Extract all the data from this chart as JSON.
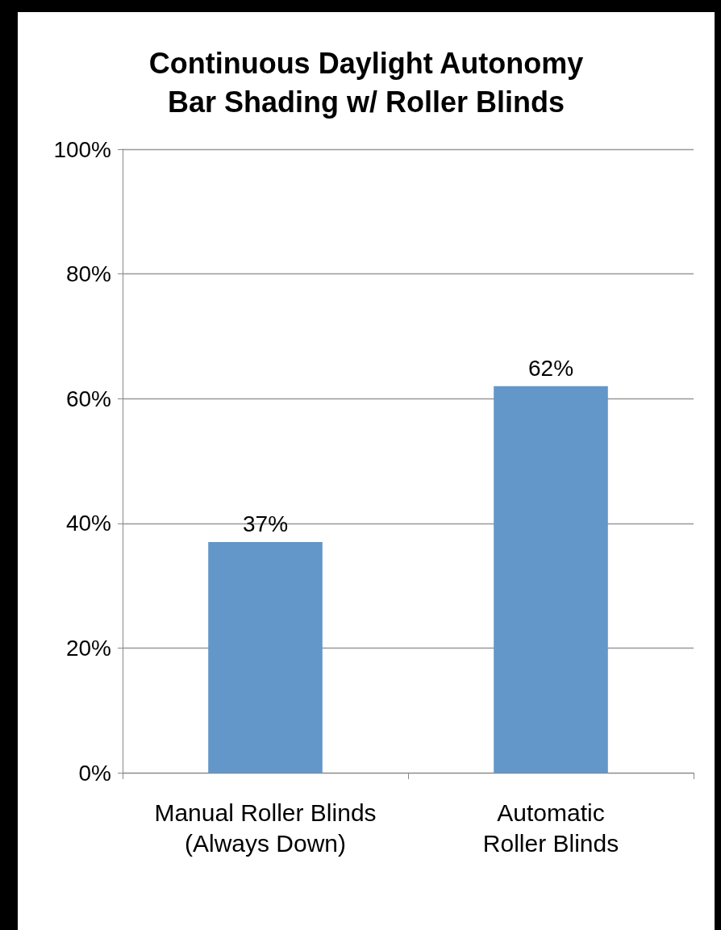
{
  "chart_data": {
    "type": "bar",
    "title": "Continuous Daylight Autonomy\nBar Shading w/ Roller Blinds",
    "categories": [
      "Manual Roller Blinds\n(Always Down)",
      "Automatic\nRoller Blinds"
    ],
    "values": [
      37,
      62
    ],
    "value_labels": [
      "37%",
      "62%"
    ],
    "color": "#6397c9",
    "ylim": [
      0,
      100
    ],
    "yticks": [
      {
        "value": 0,
        "label": "0%"
      },
      {
        "value": 20,
        "label": "20%"
      },
      {
        "value": 40,
        "label": "40%"
      },
      {
        "value": 60,
        "label": "60%"
      },
      {
        "value": 80,
        "label": "80%"
      },
      {
        "value": 100,
        "label": "100%"
      }
    ],
    "grid": "y"
  }
}
